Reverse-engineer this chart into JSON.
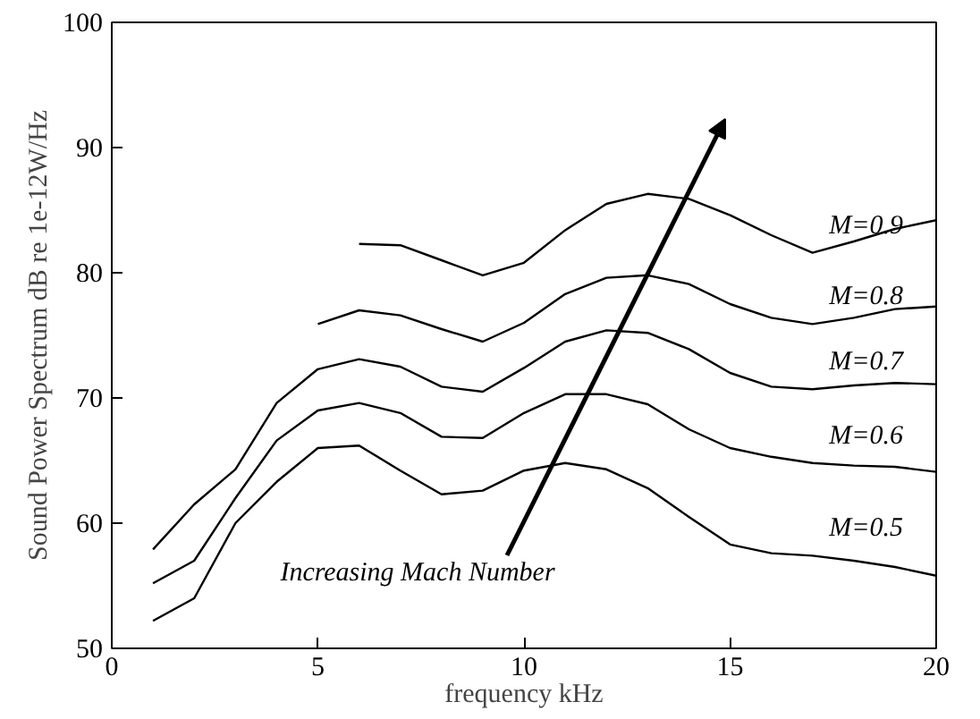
{
  "chart_data": {
    "type": "line",
    "xlabel": "frequency kHz",
    "ylabel": "Sound Power Spectrum dB re 1e-12W/Hz",
    "xlim": [
      0,
      20
    ],
    "ylim": [
      50,
      100
    ],
    "xticks": [
      0,
      5,
      10,
      15,
      20
    ],
    "yticks": [
      50,
      60,
      70,
      80,
      90,
      100
    ],
    "grid": false,
    "legend": false,
    "marker": "none",
    "line_style": "solid",
    "series": [
      {
        "name": "M=0.5",
        "color": "#000000",
        "x": [
          1,
          2,
          3,
          4,
          5,
          6,
          7,
          8,
          9,
          10,
          11,
          12,
          13,
          14,
          15,
          16,
          17,
          18,
          19,
          20
        ],
        "values": [
          52.2,
          54,
          60,
          63.3,
          66,
          66.2,
          64.2,
          62.3,
          62.6,
          64.2,
          64.8,
          64.3,
          62.8,
          60.5,
          58.3,
          57.6,
          57.4,
          57,
          56.5,
          55.8
        ]
      },
      {
        "name": "M=0.6",
        "color": "#000000",
        "x": [
          1,
          2,
          3,
          4,
          5,
          6,
          7,
          8,
          9,
          10,
          11,
          12,
          13,
          14,
          15,
          16,
          17,
          18,
          19,
          20
        ],
        "values": [
          55.2,
          57,
          62,
          66.6,
          69,
          69.6,
          68.8,
          66.9,
          66.8,
          68.8,
          70.3,
          70.3,
          69.5,
          67.5,
          66,
          65.3,
          64.8,
          64.6,
          64.5,
          64.1
        ]
      },
      {
        "name": "M=0.7",
        "color": "#000000",
        "x": [
          1,
          2,
          3,
          4,
          5,
          6,
          7,
          8,
          9,
          10,
          11,
          12,
          13,
          14,
          15,
          16,
          17,
          18,
          19,
          20
        ],
        "values": [
          57.9,
          61.5,
          64.3,
          69.6,
          72.3,
          73.1,
          72.5,
          70.9,
          70.5,
          72.4,
          74.5,
          75.4,
          75.2,
          73.9,
          72,
          70.9,
          70.7,
          71,
          71.2,
          71.1
        ]
      },
      {
        "name": "M=0.8",
        "color": "#000000",
        "x": [
          5,
          6,
          7,
          8,
          9,
          10,
          11,
          12,
          13,
          14,
          15,
          16,
          17,
          18,
          19,
          20
        ],
        "values": [
          75.9,
          77,
          76.6,
          75.5,
          74.5,
          76,
          78.3,
          79.6,
          79.8,
          79.1,
          77.5,
          76.4,
          75.9,
          76.4,
          77.1,
          77.3
        ]
      },
      {
        "name": "M=0.9",
        "color": "#000000",
        "x": [
          6,
          7,
          8,
          9,
          10,
          11,
          12,
          13,
          14,
          15,
          16,
          17,
          18,
          19,
          20
        ],
        "values": [
          82.3,
          82.2,
          81,
          79.8,
          80.8,
          83.4,
          85.5,
          86.3,
          85.9,
          84.6,
          83,
          81.6,
          82.5,
          83.5,
          84.2
        ]
      }
    ],
    "annotations": [
      "Increasing Mach Number"
    ]
  }
}
